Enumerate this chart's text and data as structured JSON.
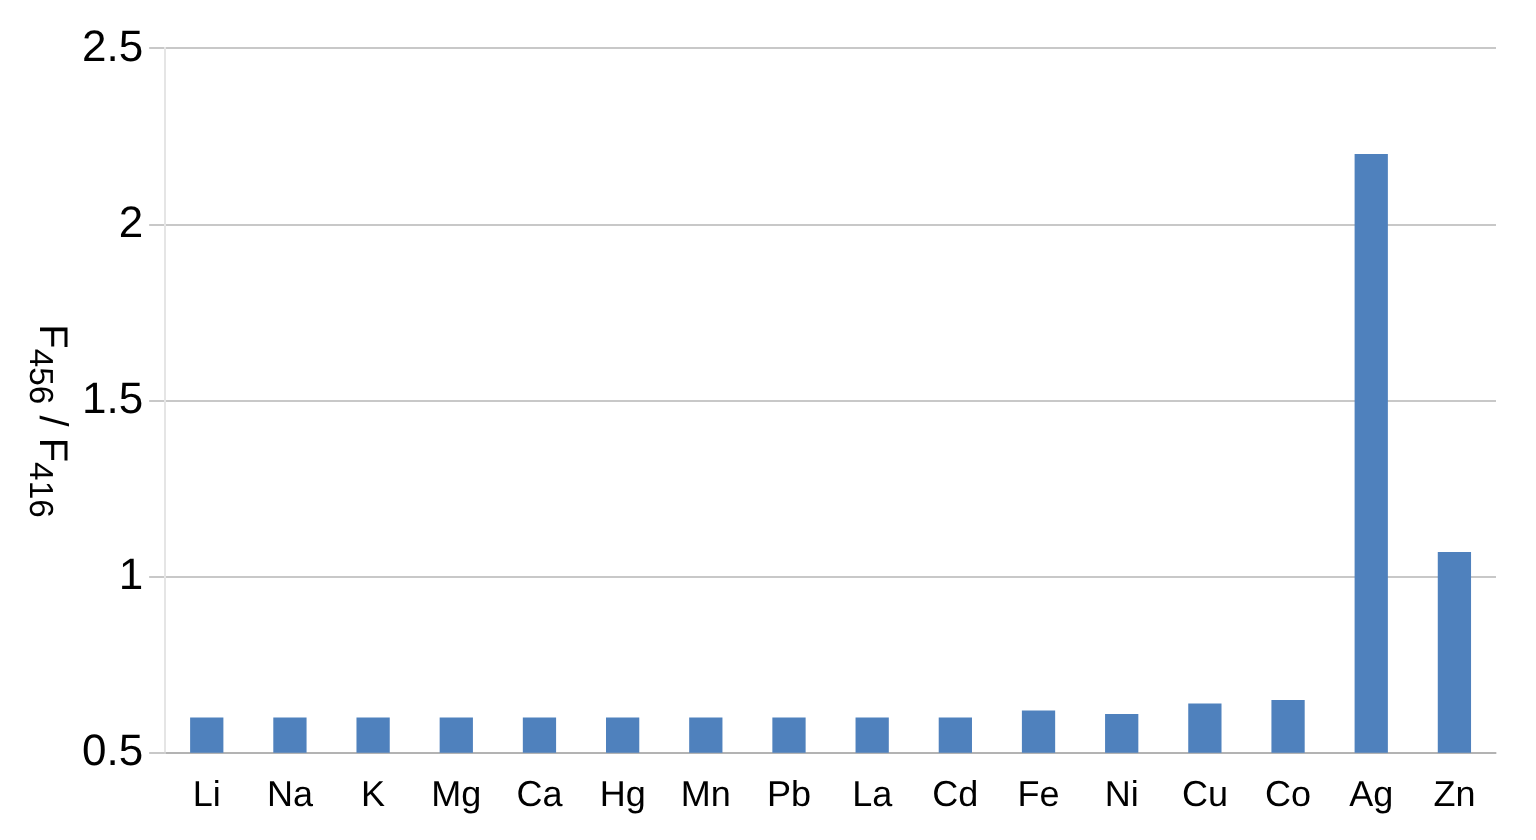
{
  "chart_data": {
    "type": "bar",
    "ylabel": "F$_{456}$ / F$_{416}$",
    "categories": [
      "Li",
      "Na",
      "K",
      "Mg",
      "Ca",
      "Hg",
      "Mn",
      "Pb",
      "La",
      "Cd",
      "Fe",
      "Ni",
      "Cu",
      "Co",
      "Ag",
      "Zn"
    ],
    "values": [
      0.6,
      0.6,
      0.6,
      0.6,
      0.6,
      0.6,
      0.6,
      0.6,
      0.6,
      0.6,
      0.62,
      0.61,
      0.64,
      0.65,
      2.2,
      1.07
    ],
    "color": "#4f81bd",
    "ylim": [
      0.5,
      2.5
    ],
    "yticks": [
      0.5,
      1,
      1.5,
      2,
      2.5
    ],
    "grid": "y"
  }
}
